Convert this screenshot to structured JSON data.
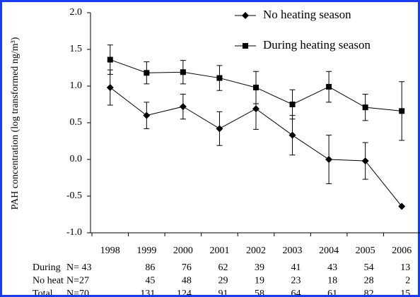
{
  "chart_data": {
    "type": "line",
    "y_label": "PAH concentration (log transformed ng/m³)",
    "categories": [
      "1998",
      "1999",
      "2000",
      "2001",
      "2002",
      "2003",
      "2004",
      "2005",
      "2006"
    ],
    "series": [
      {
        "name": "No heating season",
        "color": "#000000",
        "marker": "diamond",
        "values": [
          0.98,
          0.6,
          0.72,
          0.42,
          0.69,
          0.33,
          0.0,
          -0.02,
          -0.64
        ],
        "errors": [
          0.24,
          0.18,
          0.17,
          0.23,
          0.28,
          0.27,
          0.33,
          0.25,
          null
        ]
      },
      {
        "name": "During heating season",
        "color": "#000000",
        "marker": "square",
        "values": [
          1.36,
          1.18,
          1.19,
          1.11,
          0.98,
          0.75,
          0.99,
          0.71,
          0.66
        ],
        "errors": [
          0.2,
          0.15,
          0.16,
          0.17,
          0.22,
          0.2,
          0.21,
          0.18,
          0.4
        ]
      }
    ],
    "ylim": [
      -1,
      2
    ],
    "yticks": [
      {
        "value": -1,
        "label": "-1.0"
      },
      -0.5,
      {
        "value": 0,
        "label": "0.0"
      },
      0.5,
      {
        "value": 1,
        "label": "1.0"
      },
      1.5,
      {
        "value": 2,
        "label": "2.0"
      }
    ],
    "legend": "top-right"
  },
  "table": {
    "rows": [
      {
        "label": "During",
        "cells": [
          "N= 43",
          "86",
          "76",
          "62",
          "39",
          "41",
          "43",
          "54",
          "13"
        ]
      },
      {
        "label": "No heat",
        "cells": [
          "N=27",
          "45",
          "48",
          "29",
          "19",
          "23",
          "18",
          "28",
          "2"
        ]
      },
      {
        "label": "Total",
        "cells": [
          "N=70",
          "131",
          "124",
          "91",
          "58",
          "64",
          "61",
          "82",
          "15"
        ]
      }
    ]
  }
}
